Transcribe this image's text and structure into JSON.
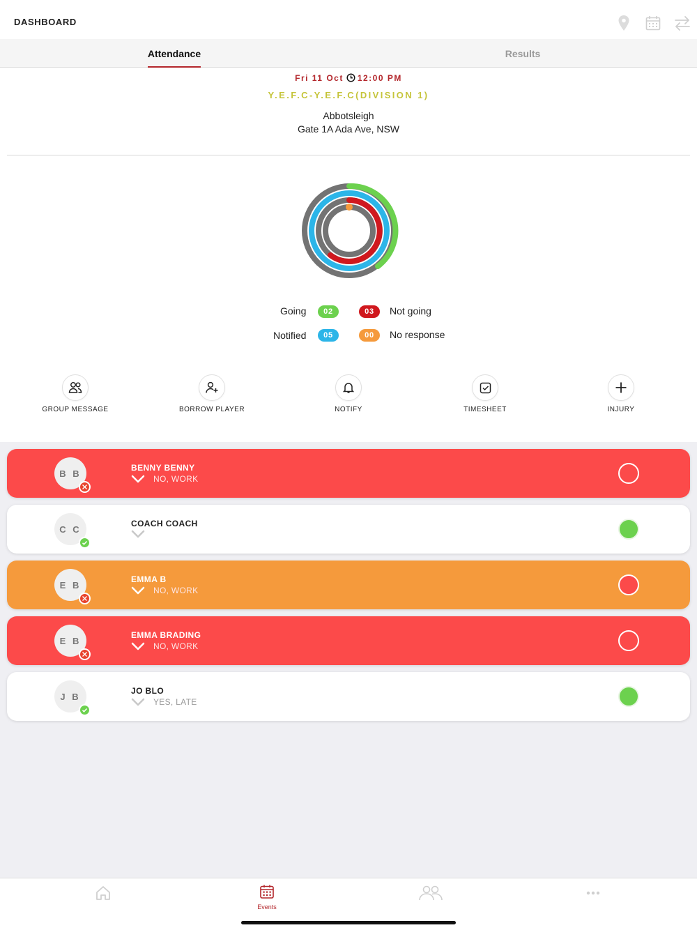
{
  "header": {
    "title": "DASHBOARD",
    "icons": [
      "location-pin-icon",
      "calendar-icon",
      "swap-icon"
    ]
  },
  "tabs": [
    {
      "label": "Attendance",
      "active": true
    },
    {
      "label": "Results",
      "active": false
    }
  ],
  "event": {
    "date": "Fri 11 Oct",
    "time": "12:00 PM",
    "match": "Y.E.F.C-Y.E.F.C(DIVISION 1)",
    "venue_name": "Abbotsleigh",
    "venue_address": "Gate 1A Ada Ave, NSW"
  },
  "summary": {
    "going": {
      "label": "Going",
      "count": "02",
      "color": "#6cd14e"
    },
    "not_going": {
      "label": "Not going",
      "count": "03",
      "color": "#d0181e"
    },
    "notified": {
      "label": "Notified",
      "count": "05",
      "color": "#2cb5e8"
    },
    "no_response": {
      "label": "No response",
      "count": "00",
      "color": "#f59a3c"
    }
  },
  "actions": [
    {
      "label": "GROUP MESSAGE",
      "icon": "group-icon"
    },
    {
      "label": "BORROW PLAYER",
      "icon": "add-user-icon"
    },
    {
      "label": "NOTIFY",
      "icon": "bell-icon"
    },
    {
      "label": "TIMESHEET",
      "icon": "checkbox-icon"
    },
    {
      "label": "INJURY",
      "icon": "plus-icon"
    }
  ],
  "players": [
    {
      "initials": "B B",
      "name": "BENNY BENNY",
      "reason": "NO, WORK",
      "card_color": "red",
      "status": "no",
      "toggle": "empty"
    },
    {
      "initials": "C C",
      "name": "COACH COACH",
      "reason": "",
      "card_color": "white",
      "status": "yes",
      "toggle": "green"
    },
    {
      "initials": "E B",
      "name": "EMMA B",
      "reason": "NO, WORK",
      "card_color": "orange",
      "status": "no",
      "toggle": "redfill"
    },
    {
      "initials": "E B",
      "name": "EMMA BRADING",
      "reason": "NO, WORK",
      "card_color": "red",
      "status": "no",
      "toggle": "empty"
    },
    {
      "initials": "J B",
      "name": "JO BLO",
      "reason": "YES, LATE",
      "card_color": "white",
      "status": "yes",
      "toggle": "green"
    }
  ],
  "bottom_nav": [
    {
      "label": "",
      "icon": "home-icon"
    },
    {
      "label": "Events",
      "icon": "events-calendar-icon",
      "active": true
    },
    {
      "label": "",
      "icon": "people-icon"
    },
    {
      "label": "",
      "icon": "more-icon"
    }
  ]
}
